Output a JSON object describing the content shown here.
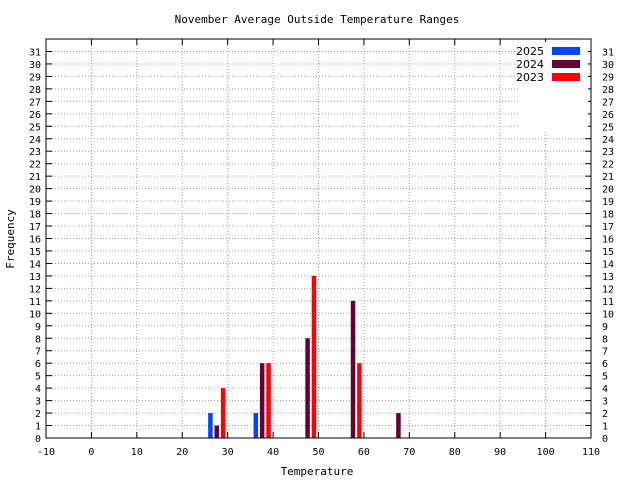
{
  "chart_data": {
    "type": "bar",
    "title": "November Average Outside Temperature Ranges",
    "xlabel": "Temperature",
    "ylabel": "Frequency",
    "xlim": [
      -10,
      110
    ],
    "ylim": [
      0,
      32
    ],
    "x_ticks": [
      -10,
      0,
      10,
      20,
      30,
      40,
      50,
      60,
      70,
      80,
      90,
      100,
      110
    ],
    "y_ticks": [
      0,
      1,
      2,
      3,
      4,
      5,
      6,
      7,
      8,
      9,
      10,
      11,
      12,
      13,
      14,
      15,
      16,
      17,
      18,
      19,
      20,
      21,
      22,
      23,
      24,
      25,
      26,
      27,
      28,
      29,
      30,
      31
    ],
    "grid": true,
    "legend": "top-right",
    "categories": [
      30,
      40,
      50,
      60,
      70
    ],
    "series": [
      {
        "name": "2025",
        "color": "#0044ff",
        "values": [
          2,
          2,
          0,
          0,
          0
        ]
      },
      {
        "name": "2024",
        "color": "#660033",
        "values": [
          1,
          6,
          8,
          11,
          2
        ]
      },
      {
        "name": "2023",
        "color": "#ff0000",
        "values": [
          4,
          6,
          13,
          6,
          0
        ]
      }
    ]
  }
}
